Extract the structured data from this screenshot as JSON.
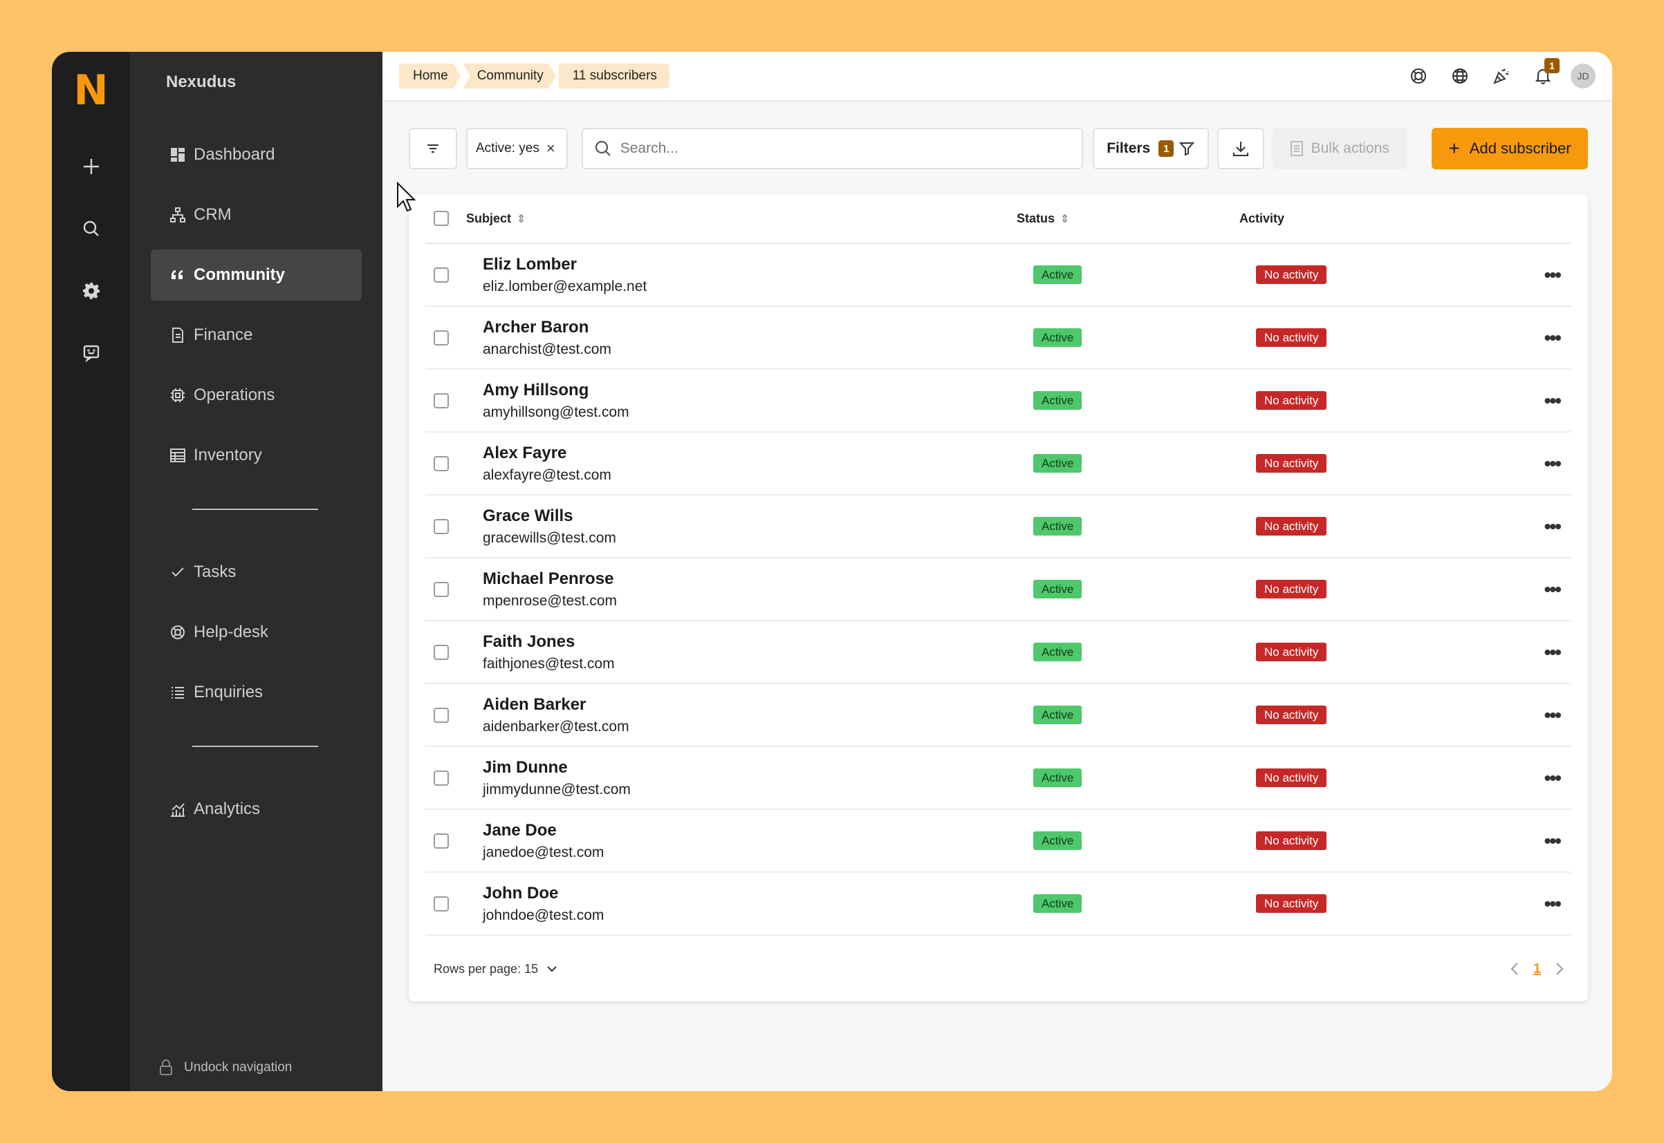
{
  "app": {
    "logo": "N",
    "brand": "Nexudus"
  },
  "rail": [
    "plus-icon",
    "search-icon",
    "gear-icon",
    "chat-icon"
  ],
  "nav": {
    "items": [
      {
        "label": "Dashboard",
        "icon": "dashboard-icon",
        "active": false
      },
      {
        "label": "CRM",
        "icon": "crm-icon",
        "active": false
      },
      {
        "label": "Community",
        "icon": "quote-icon",
        "active": true
      },
      {
        "label": "Finance",
        "icon": "document-icon",
        "active": false
      },
      {
        "label": "Operations",
        "icon": "chip-icon",
        "active": false
      },
      {
        "label": "Inventory",
        "icon": "table-icon",
        "active": false
      }
    ],
    "items2": [
      {
        "label": "Tasks",
        "icon": "check-icon"
      },
      {
        "label": "Help-desk",
        "icon": "lifebuoy-icon"
      },
      {
        "label": "Enquiries",
        "icon": "list-icon"
      }
    ],
    "items3": [
      {
        "label": "Analytics",
        "icon": "analytics-icon"
      }
    ],
    "undock": "Undock navigation"
  },
  "breadcrumb": [
    "Home",
    "Community",
    "11 subscribers"
  ],
  "topbar": {
    "notifications_count": "1",
    "avatar": "JD"
  },
  "toolbar": {
    "chip_label": "Active: yes",
    "chip_close": "×",
    "search_placeholder": "Search...",
    "filters_label": "Filters",
    "filters_count": "1",
    "bulk_label": "Bulk actions",
    "add_plus": "+",
    "add_label": "Add subscriber"
  },
  "table": {
    "headers": {
      "subject": "Subject",
      "status": "Status",
      "activity": "Activity"
    },
    "rows": [
      {
        "name": "Eliz Lomber",
        "email": "eliz.lomber@example.net",
        "status": "Active",
        "activity": "No activity"
      },
      {
        "name": "Archer Baron",
        "email": "anarchist@test.com",
        "status": "Active",
        "activity": "No activity"
      },
      {
        "name": "Amy Hillsong",
        "email": "amyhillsong@test.com",
        "status": "Active",
        "activity": "No activity"
      },
      {
        "name": "Alex Fayre",
        "email": "alexfayre@test.com",
        "status": "Active",
        "activity": "No activity"
      },
      {
        "name": "Grace Wills",
        "email": "gracewills@test.com",
        "status": "Active",
        "activity": "No activity"
      },
      {
        "name": "Michael Penrose",
        "email": "mpenrose@test.com",
        "status": "Active",
        "activity": "No activity"
      },
      {
        "name": "Faith Jones",
        "email": "faithjones@test.com",
        "status": "Active",
        "activity": "No activity"
      },
      {
        "name": "Aiden Barker",
        "email": "aidenbarker@test.com",
        "status": "Active",
        "activity": "No activity"
      },
      {
        "name": "Jim Dunne",
        "email": "jimmydunne@test.com",
        "status": "Active",
        "activity": "No activity"
      },
      {
        "name": "Jane Doe",
        "email": "janedoe@test.com",
        "status": "Active",
        "activity": "No activity"
      },
      {
        "name": "John Doe",
        "email": "johndoe@test.com",
        "status": "Active",
        "activity": "No activity"
      }
    ],
    "more_glyph": "•••",
    "rows_per_page": "Rows per page: 15",
    "page": "1"
  },
  "colors": {
    "accent": "#F7990C",
    "background": "#FFC266",
    "active": "#4EC86B",
    "no_activity": "#C62828"
  }
}
